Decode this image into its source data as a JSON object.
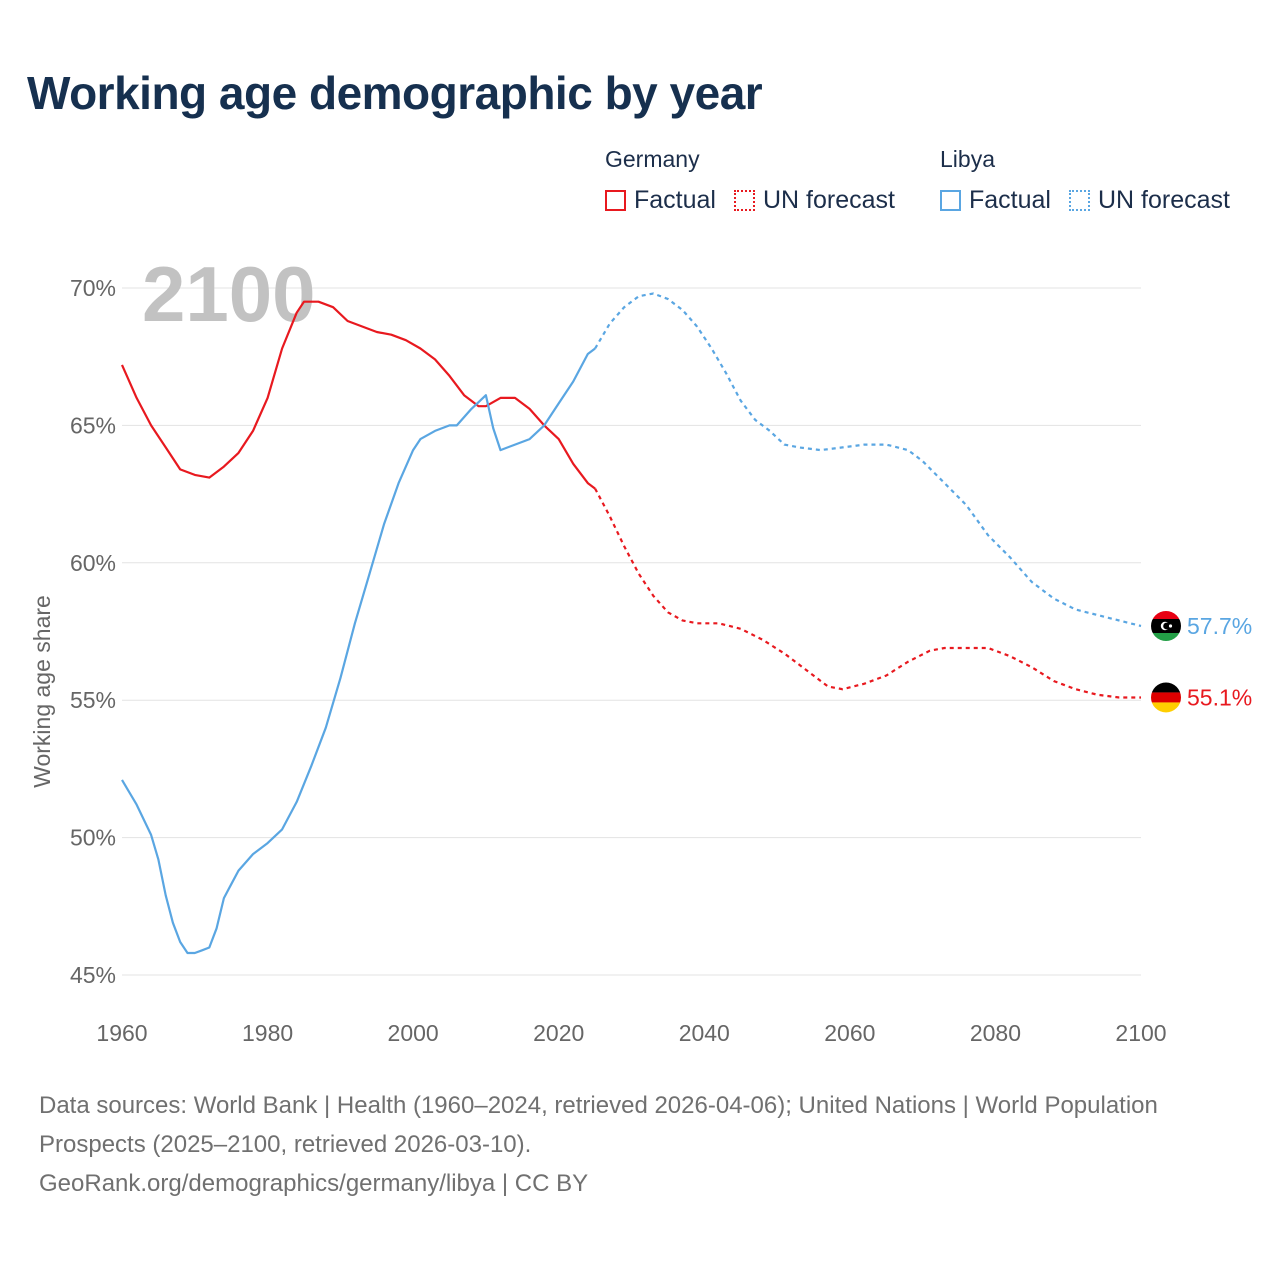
{
  "title": "Working age demographic by year",
  "legend": {
    "groups": [
      {
        "name": "Germany",
        "color": "#e8191f",
        "factual_label": "Factual",
        "forecast_label": "UN forecast"
      },
      {
        "name": "Libya",
        "color": "#5aa6e2",
        "factual_label": "Factual",
        "forecast_label": "UN forecast"
      }
    ]
  },
  "year_watermark": "2100",
  "footer": {
    "sources": "Data sources: World Bank | Health (1960–2024, retrieved 2026-04-06); United Nations | World Population Prospects (2025–2100, retrieved 2026-03-10).",
    "link": "GeoRank.org/demographics/germany/libya | CC BY"
  },
  "chart_data": {
    "type": "line",
    "title": "Working age demographic by year",
    "xlabel": "",
    "ylabel": "Working age share",
    "xlim": [
      1960,
      2100
    ],
    "ylim": [
      45,
      70
    ],
    "xticks": [
      1960,
      1980,
      2000,
      2020,
      2040,
      2060,
      2080,
      2100
    ],
    "xtick_labels": [
      "1960",
      "1980",
      "2000",
      "2020",
      "2040",
      "2060",
      "2080",
      "2100"
    ],
    "yticks": [
      45,
      50,
      55,
      60,
      65,
      70
    ],
    "ytick_labels": [
      "45%",
      "50%",
      "55%",
      "60%",
      "65%",
      "70%"
    ],
    "grid": true,
    "forecast_start": 2025,
    "series": [
      {
        "name": "Germany",
        "color": "#e8191f",
        "end_label": "55.1%",
        "flag": "germany",
        "points": [
          [
            1960,
            67.2
          ],
          [
            1962,
            66.0
          ],
          [
            1964,
            65.0
          ],
          [
            1966,
            64.2
          ],
          [
            1968,
            63.4
          ],
          [
            1970,
            63.2
          ],
          [
            1972,
            63.1
          ],
          [
            1974,
            63.5
          ],
          [
            1976,
            64.0
          ],
          [
            1978,
            64.8
          ],
          [
            1980,
            66.0
          ],
          [
            1982,
            67.8
          ],
          [
            1984,
            69.1
          ],
          [
            1985,
            69.5
          ],
          [
            1987,
            69.5
          ],
          [
            1989,
            69.3
          ],
          [
            1991,
            68.8
          ],
          [
            1993,
            68.6
          ],
          [
            1995,
            68.4
          ],
          [
            1997,
            68.3
          ],
          [
            1999,
            68.1
          ],
          [
            2001,
            67.8
          ],
          [
            2003,
            67.4
          ],
          [
            2005,
            66.8
          ],
          [
            2007,
            66.1
          ],
          [
            2009,
            65.7
          ],
          [
            2010,
            65.7
          ],
          [
            2012,
            66.0
          ],
          [
            2014,
            66.0
          ],
          [
            2016,
            65.6
          ],
          [
            2018,
            65.0
          ],
          [
            2020,
            64.5
          ],
          [
            2022,
            63.6
          ],
          [
            2024,
            62.9
          ],
          [
            2025,
            62.7
          ],
          [
            2027,
            61.7
          ],
          [
            2029,
            60.6
          ],
          [
            2031,
            59.6
          ],
          [
            2033,
            58.8
          ],
          [
            2035,
            58.2
          ],
          [
            2037,
            57.9
          ],
          [
            2039,
            57.8
          ],
          [
            2042,
            57.8
          ],
          [
            2045,
            57.6
          ],
          [
            2048,
            57.2
          ],
          [
            2051,
            56.7
          ],
          [
            2054,
            56.1
          ],
          [
            2057,
            55.5
          ],
          [
            2059,
            55.4
          ],
          [
            2062,
            55.6
          ],
          [
            2065,
            55.9
          ],
          [
            2068,
            56.4
          ],
          [
            2071,
            56.8
          ],
          [
            2073,
            56.9
          ],
          [
            2076,
            56.9
          ],
          [
            2079,
            56.9
          ],
          [
            2082,
            56.6
          ],
          [
            2085,
            56.2
          ],
          [
            2088,
            55.7
          ],
          [
            2091,
            55.4
          ],
          [
            2094,
            55.2
          ],
          [
            2097,
            55.1
          ],
          [
            2100,
            55.1
          ]
        ]
      },
      {
        "name": "Libya",
        "color": "#5aa6e2",
        "end_label": "57.7%",
        "flag": "libya",
        "points": [
          [
            1960,
            52.1
          ],
          [
            1962,
            51.2
          ],
          [
            1964,
            50.1
          ],
          [
            1965,
            49.2
          ],
          [
            1966,
            47.9
          ],
          [
            1967,
            46.9
          ],
          [
            1968,
            46.2
          ],
          [
            1969,
            45.8
          ],
          [
            1970,
            45.8
          ],
          [
            1971,
            45.9
          ],
          [
            1972,
            46.0
          ],
          [
            1973,
            46.7
          ],
          [
            1974,
            47.8
          ],
          [
            1975,
            48.3
          ],
          [
            1976,
            48.8
          ],
          [
            1978,
            49.4
          ],
          [
            1980,
            49.8
          ],
          [
            1982,
            50.3
          ],
          [
            1984,
            51.3
          ],
          [
            1986,
            52.6
          ],
          [
            1988,
            54.0
          ],
          [
            1990,
            55.8
          ],
          [
            1992,
            57.8
          ],
          [
            1994,
            59.6
          ],
          [
            1996,
            61.4
          ],
          [
            1998,
            62.9
          ],
          [
            2000,
            64.1
          ],
          [
            2001,
            64.5
          ],
          [
            2003,
            64.8
          ],
          [
            2005,
            65.0
          ],
          [
            2006,
            65.0
          ],
          [
            2008,
            65.6
          ],
          [
            2010,
            66.1
          ],
          [
            2011,
            64.9
          ],
          [
            2012,
            64.1
          ],
          [
            2014,
            64.3
          ],
          [
            2016,
            64.5
          ],
          [
            2018,
            65.0
          ],
          [
            2020,
            65.8
          ],
          [
            2022,
            66.6
          ],
          [
            2024,
            67.6
          ],
          [
            2025,
            67.8
          ],
          [
            2027,
            68.7
          ],
          [
            2029,
            69.3
          ],
          [
            2031,
            69.7
          ],
          [
            2033,
            69.8
          ],
          [
            2035,
            69.6
          ],
          [
            2037,
            69.2
          ],
          [
            2039,
            68.6
          ],
          [
            2041,
            67.8
          ],
          [
            2043,
            66.9
          ],
          [
            2045,
            65.9
          ],
          [
            2047,
            65.2
          ],
          [
            2049,
            64.8
          ],
          [
            2051,
            64.3
          ],
          [
            2053,
            64.2
          ],
          [
            2056,
            64.1
          ],
          [
            2059,
            64.2
          ],
          [
            2062,
            64.3
          ],
          [
            2065,
            64.3
          ],
          [
            2068,
            64.1
          ],
          [
            2070,
            63.7
          ],
          [
            2073,
            62.9
          ],
          [
            2076,
            62.1
          ],
          [
            2079,
            61.0
          ],
          [
            2082,
            60.2
          ],
          [
            2085,
            59.3
          ],
          [
            2088,
            58.7
          ],
          [
            2091,
            58.3
          ],
          [
            2094,
            58.1
          ],
          [
            2097,
            57.9
          ],
          [
            2100,
            57.7
          ]
        ]
      }
    ]
  }
}
